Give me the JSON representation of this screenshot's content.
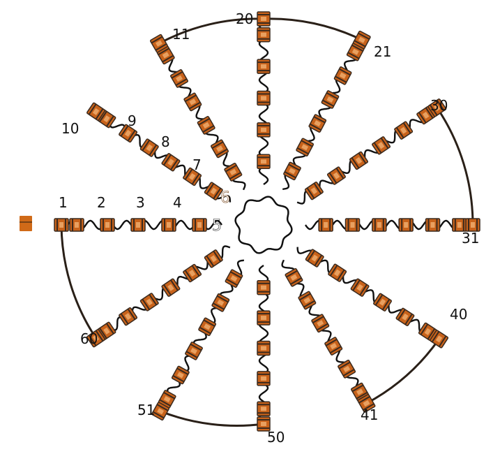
{
  "colors": {
    "background": "#ffffff",
    "serpentine": "#111111",
    "node_fill": "#c8621a",
    "node_dark": "#3a2a1e",
    "bus_arc": "#2a2018",
    "pad_fill": "#d06a18"
  },
  "labels": {
    "n1": "1",
    "n2": "2",
    "n3": "3",
    "n4": "4",
    "n5": "5",
    "n6": "6",
    "n7": "7",
    "n8": "8",
    "n9": "9",
    "n10": "10",
    "n11": "11",
    "n20": "20",
    "n21": "21",
    "n30": "30",
    "n31": "31",
    "n40": "40",
    "n41": "41",
    "n50": "50",
    "n51": "51",
    "n60": "60"
  }
}
